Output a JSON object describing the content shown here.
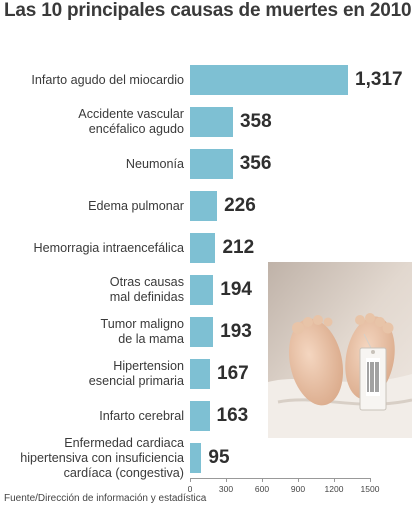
{
  "title": "Las 10 principales causas de muertes en 2010",
  "source": "Fuente/Dirección de información y estadística",
  "colors": {
    "bar": "#7ec0d3",
    "text": "#333333"
  },
  "chart_data": {
    "type": "bar",
    "orientation": "horizontal",
    "title": "Las 10 principales causas de muertes en 2010",
    "categories": [
      "Infarto agudo del miocardio",
      "Accidente vascular\nencéfalico agudo",
      "Neumonía",
      "Edema pulmonar",
      "Hemorragia intraencefálica",
      "Otras causas\nmal definidas",
      "Tumor maligno\nde la mama",
      "Hipertension\nesencial primaria",
      "Infarto cerebral",
      "Enfermedad cardiaca\nhipertensiva con insuficiencia\ncardíaca (congestiva)"
    ],
    "values": [
      1317,
      358,
      356,
      226,
      212,
      194,
      193,
      167,
      163,
      95
    ],
    "value_labels": [
      "1,317",
      "358",
      "356",
      "226",
      "212",
      "194",
      "193",
      "167",
      "163",
      "95"
    ],
    "xlim": [
      0,
      1500
    ],
    "xticks": [
      0,
      300,
      600,
      900,
      1200,
      1500
    ],
    "xtick_labels": [
      "0",
      "300",
      "600",
      "900",
      "1200",
      "1500"
    ],
    "grid": false,
    "legend": "none"
  }
}
